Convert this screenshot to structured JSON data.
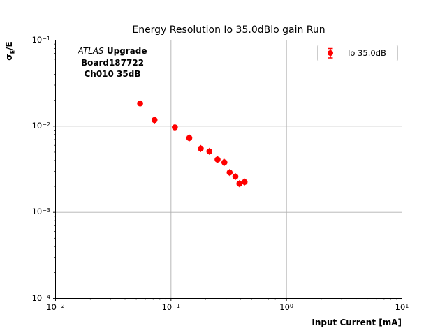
{
  "figure": {
    "title": "Energy Resolution Io 35.0dBlo gain Run",
    "xlabel": "Input Current [mA]",
    "ylabel": {
      "sigma": "σ",
      "subscript": "E",
      "rest": "/E"
    },
    "annotation": {
      "atlas": "ATLAS",
      "upgrade": " Upgrade",
      "board": "Board187722",
      "channel": "Ch010 35dB"
    },
    "legend": {
      "label": "Io 35.0dB"
    }
  },
  "colors": {
    "marker": "#ff0000",
    "grid": "#b0b0b0",
    "legend_border": "#cccccc",
    "axis": "#000000",
    "background": "#ffffff"
  },
  "chart_data": {
    "type": "scatter",
    "title": "Energy Resolution Io 35.0dBlo gain Run",
    "xlabel": "Input Current [mA]",
    "ylabel": "σ_E/E",
    "x_scale": "log",
    "y_scale": "log",
    "xlim": [
      0.01,
      10
    ],
    "ylim": [
      0.0001,
      0.1
    ],
    "x_ticks": [
      0.01,
      0.1,
      1,
      10
    ],
    "y_ticks": [
      0.1,
      0.01,
      0.001,
      0.0001
    ],
    "grid": true,
    "legend_position": "upper right",
    "annotation_text": "ATLAS Upgrade\nBoard187722\nCh010 35dB",
    "series": [
      {
        "name": "Io 35.0dB",
        "color": "#ff0000",
        "marker": "o",
        "error_bars": "smaller than markers",
        "x": [
          0.054,
          0.072,
          0.108,
          0.144,
          0.181,
          0.215,
          0.253,
          0.29,
          0.322,
          0.361,
          0.391,
          0.434
        ],
        "y": [
          0.0184,
          0.0118,
          0.0097,
          0.0073,
          0.0055,
          0.0051,
          0.0041,
          0.0038,
          0.0029,
          0.0026,
          0.00215,
          0.00225
        ]
      }
    ]
  }
}
